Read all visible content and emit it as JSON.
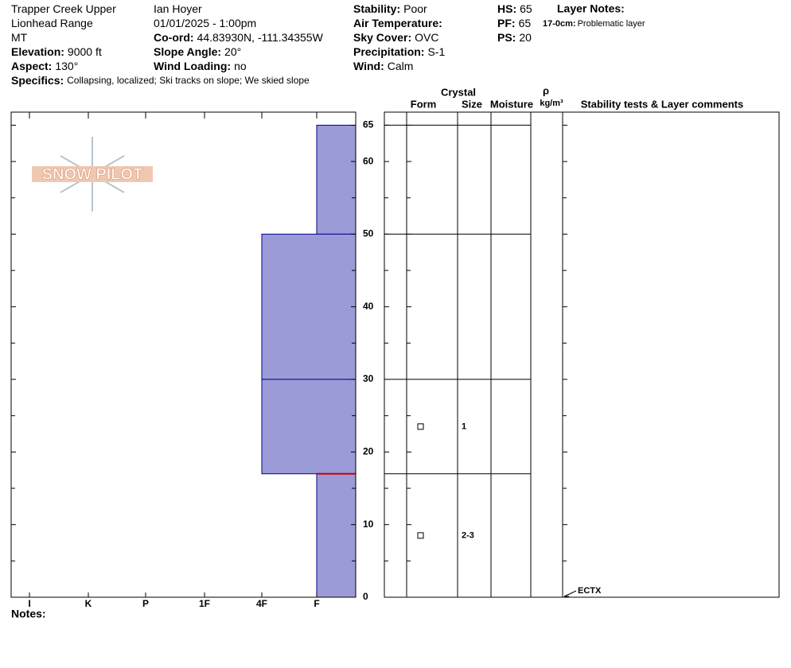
{
  "header": {
    "lines": [
      {
        "x": 0,
        "row": 0,
        "value": "Trapper Creek Upper"
      },
      {
        "x": 0,
        "row": 1,
        "value": "Lionhead Range"
      },
      {
        "x": 0,
        "row": 2,
        "value": "MT"
      },
      {
        "x": 0,
        "row": 3,
        "label": "Elevation:",
        "value": "9000 ft"
      },
      {
        "x": 0,
        "row": 4,
        "label": "Aspect:",
        "value": "130°"
      },
      {
        "x": 1,
        "row": 0,
        "value": "Ian Hoyer"
      },
      {
        "x": 1,
        "row": 1,
        "value": "01/01/2025 - 1:00pm"
      },
      {
        "x": 1,
        "row": 2,
        "label": "Co-ord:",
        "value": "44.83930N, -111.34355W"
      },
      {
        "x": 1,
        "row": 3,
        "label": "Slope Angle:",
        "value": "20°"
      },
      {
        "x": 1,
        "row": 4,
        "label": "Wind Loading:",
        "value": "no"
      },
      {
        "x": 2,
        "row": 0,
        "label": "Stability:",
        "value": "Poor"
      },
      {
        "x": 2,
        "row": 1,
        "label": "Air Temperature:"
      },
      {
        "x": 2,
        "row": 2,
        "label": "Sky Cover:",
        "value": "OVC"
      },
      {
        "x": 2,
        "row": 3,
        "label": "Precipitation:",
        "value": "S-1"
      },
      {
        "x": 2,
        "row": 4,
        "label": "Wind:",
        "value": "Calm"
      },
      {
        "x": 3,
        "row": 0,
        "label": "HS:",
        "value": "65"
      },
      {
        "x": 3,
        "row": 1,
        "label": "PF:",
        "value": "65"
      },
      {
        "x": 3,
        "row": 2,
        "label": "PS:",
        "value": "20"
      }
    ],
    "specifics_label": "Specifics:",
    "specifics": "Collapsing, localized; Ski tracks on slope; We skied slope",
    "layer_notes_title": "Layer Notes:",
    "layer_notes": [
      {
        "range": "17-0cm:",
        "text": "Problematic layer"
      }
    ],
    "logo": "SNOW PILOT",
    "notes_label": "Notes:"
  },
  "columns": {
    "crystal": "Crystal",
    "form": "Form",
    "size": "Size",
    "moisture": "Moisture",
    "density": "ρ",
    "density_unit": "kg/m³",
    "comments": "Stability tests & Layer comments"
  },
  "chart_data": {
    "type": "snow-profile",
    "ylim": [
      0,
      66.8
    ],
    "yticks": [
      0,
      10,
      20,
      30,
      40,
      50,
      60,
      65
    ],
    "minor_yticks": [
      5,
      15,
      25,
      35,
      45,
      55
    ],
    "hardness_scale": [
      "I",
      "K",
      "P",
      "1F",
      "4F",
      "F"
    ],
    "color": "#9b9bd8",
    "layers": [
      {
        "top": 65,
        "bottom": 50,
        "hardness": "F"
      },
      {
        "top": 50,
        "bottom": 30,
        "hardness": "4F"
      },
      {
        "top": 30,
        "bottom": 17,
        "hardness": "4F"
      },
      {
        "top": 17,
        "bottom": 0,
        "hardness": "F"
      }
    ],
    "problem_layer": 17,
    "problem_color": "#cc0000",
    "grains": [
      {
        "height": 23.5,
        "size": "1"
      },
      {
        "height": 8.5,
        "size": "2-3"
      }
    ],
    "tests": [
      {
        "height": 0,
        "label": "ECTX"
      }
    ]
  }
}
